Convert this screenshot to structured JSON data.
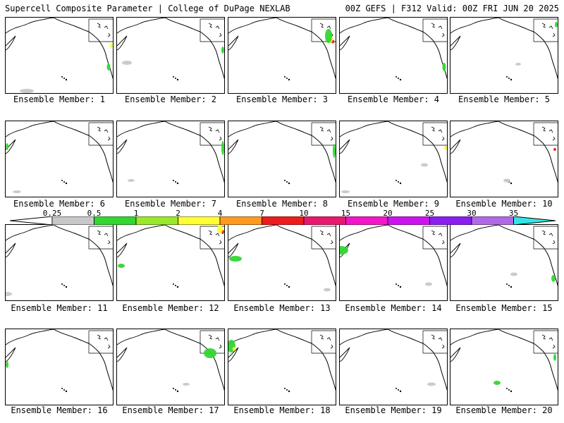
{
  "header": {
    "left": "Supercell Composite Parameter | College of DuPage NEXLAB",
    "right": "00Z GEFS | F312 Valid: 00Z FRI JUN 20 2025"
  },
  "members": [
    {
      "label": "Ensemble Member: 1"
    },
    {
      "label": "Ensemble Member: 2"
    },
    {
      "label": "Ensemble Member: 3"
    },
    {
      "label": "Ensemble Member: 4"
    },
    {
      "label": "Ensemble Member: 5"
    },
    {
      "label": "Ensemble Member: 6"
    },
    {
      "label": "Ensemble Member: 7"
    },
    {
      "label": "Ensemble Member: 8"
    },
    {
      "label": "Ensemble Member: 9"
    },
    {
      "label": "Ensemble Member: 10"
    },
    {
      "label": "Ensemble Member: 11"
    },
    {
      "label": "Ensemble Member: 12"
    },
    {
      "label": "Ensemble Member: 13"
    },
    {
      "label": "Ensemble Member: 14"
    },
    {
      "label": "Ensemble Member: 15"
    },
    {
      "label": "Ensemble Member: 16"
    },
    {
      "label": "Ensemble Member: 17"
    },
    {
      "label": "Ensemble Member: 18"
    },
    {
      "label": "Ensemble Member: 19"
    },
    {
      "label": "Ensemble Member: 20"
    }
  ],
  "colorbar": {
    "ticks": [
      "0.25",
      "0.5",
      "1",
      "2",
      "4",
      "7",
      "10",
      "15",
      "20",
      "25",
      "30",
      "35"
    ],
    "colors": [
      "#ffffff",
      "#c8c8c8",
      "#33d633",
      "#9be82a",
      "#ffff33",
      "#ff9a1f",
      "#ee1c1c",
      "#e8196e",
      "#f416c8",
      "#cc14ee",
      "#8a1ff0",
      "#b06ae6",
      "#33e6e6"
    ]
  }
}
